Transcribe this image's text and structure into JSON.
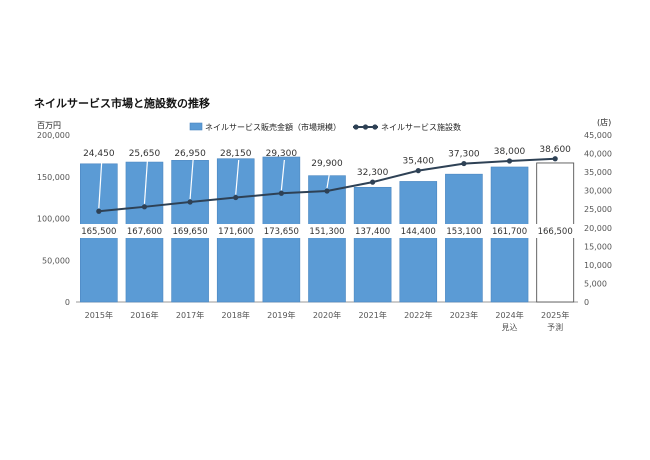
{
  "chart_data": {
    "type": "bar",
    "title": "ネイルサービス市場と施設数の推移",
    "y_left_unit": "百万円",
    "y_right_unit": "(店)",
    "categories": [
      "2015年",
      "2016年",
      "2017年",
      "2018年",
      "2019年",
      "2020年",
      "2021年",
      "2022年",
      "2023年",
      "2024年",
      "2025年"
    ],
    "category_sublabels": [
      "",
      "",
      "",
      "",
      "",
      "",
      "",
      "",
      "",
      "見込",
      "予測"
    ],
    "series": [
      {
        "name": "ネイルサービス販売金額（市場規模）",
        "type": "bar",
        "axis": "left",
        "values": [
          165500,
          167600,
          169650,
          171600,
          173650,
          151300,
          137400,
          144400,
          153100,
          161700,
          166500
        ],
        "labels": [
          "165,500",
          "167,600",
          "169,650",
          "171,600",
          "173,650",
          "151,300",
          "137,400",
          "144,400",
          "153,100",
          "161,700",
          "166,500"
        ],
        "forecast_last": true
      },
      {
        "name": "ネイルサービス施設数",
        "type": "line",
        "axis": "right",
        "values": [
          24450,
          25650,
          26950,
          28150,
          29300,
          29900,
          32300,
          35400,
          37300,
          38000,
          38600
        ],
        "labels": [
          "24,450",
          "25,650",
          "26,950",
          "28,150",
          "29,300",
          "29,900",
          "32,300",
          "35,400",
          "37,300",
          "38,000",
          "38,600"
        ]
      }
    ],
    "y_left_lim": [
      0,
      200000
    ],
    "y_left_ticks": [
      "0",
      "50,000",
      "100,000",
      "150,000",
      "200,000"
    ],
    "y_right_lim": [
      0,
      45000
    ],
    "y_right_ticks": [
      "0",
      "5,000",
      "10,000",
      "15,000",
      "20,000",
      "25,000",
      "30,000",
      "35,000",
      "40,000",
      "45,000"
    ],
    "legend_position": "top",
    "grid": false,
    "colors": {
      "bar": "#5b9bd5",
      "bar_edge": "#4a86c0",
      "line": "#2e4155",
      "forecast_fill": "#ffffff",
      "forecast_edge": "#555555",
      "label_bg": "#ffffff"
    }
  }
}
